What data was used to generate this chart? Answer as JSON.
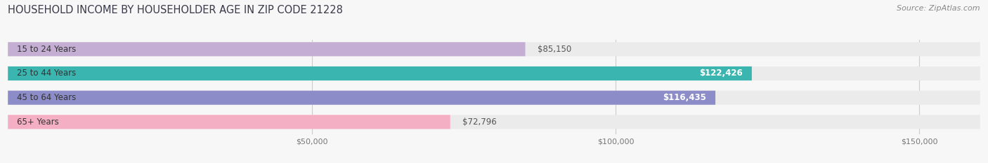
{
  "title": "HOUSEHOLD INCOME BY HOUSEHOLDER AGE IN ZIP CODE 21228",
  "source": "Source: ZipAtlas.com",
  "categories": [
    "15 to 24 Years",
    "25 to 44 Years",
    "45 to 64 Years",
    "65+ Years"
  ],
  "values": [
    85150,
    122426,
    116435,
    72796
  ],
  "bar_colors": [
    "#c5aed4",
    "#3ab5b0",
    "#8b8cc8",
    "#f5afc5"
  ],
  "bar_bg_color": "#ebebeb",
  "label_colors_inside": [
    "#ffffff",
    "#ffffff",
    "#ffffff",
    "#ffffff"
  ],
  "label_colors_outside": [
    "#555555",
    "#555555",
    "#555555",
    "#555555"
  ],
  "xlim_min": 0,
  "xlim_max": 160000,
  "xticks": [
    50000,
    100000,
    150000
  ],
  "xtick_labels": [
    "$50,000",
    "$100,000",
    "$150,000"
  ],
  "title_fontsize": 10.5,
  "source_fontsize": 8,
  "bar_label_fontsize": 8.5,
  "cat_label_fontsize": 8.5,
  "background_color": "#f7f7f7",
  "bar_height": 0.58,
  "value_inside_threshold": 95000
}
